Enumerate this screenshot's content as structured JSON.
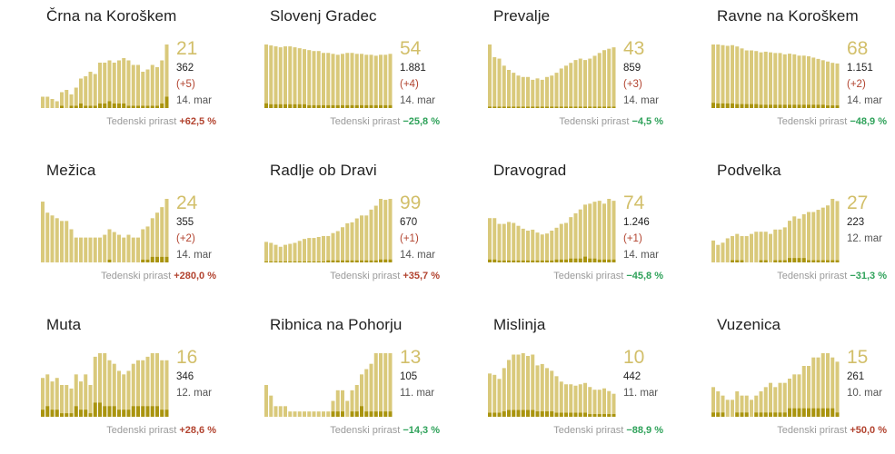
{
  "colors": {
    "bar": "#d9c97b",
    "bar_new": "#a9940f",
    "active_number": "#d2bf6a",
    "up": "#b2432f",
    "down": "#2fa25a"
  },
  "chart_data": [
    {
      "type": "bar",
      "title": "Črna na Koroškem",
      "active": "21",
      "total": "362",
      "delta": "(+5)",
      "date": "14. mar",
      "growth_label": "Tedenski prirast",
      "growth": "+62,5 %",
      "growth_dir": "up",
      "values": [
        5,
        5,
        4,
        3,
        7,
        8,
        6,
        9,
        13,
        14,
        16,
        15,
        20,
        20,
        21,
        20,
        21,
        22,
        21,
        19,
        19,
        16,
        17,
        19,
        18,
        21,
        28
      ],
      "new_values": [
        0,
        0,
        0,
        0,
        1,
        0,
        1,
        1,
        2,
        1,
        1,
        1,
        2,
        2,
        3,
        2,
        2,
        2,
        1,
        1,
        1,
        1,
        1,
        1,
        1,
        2,
        5
      ]
    },
    {
      "type": "bar",
      "title": "Slovenj Gradec",
      "active": "54",
      "total": "1.881",
      "delta": "(+4)",
      "date": "14. mar",
      "growth_label": "Tedenski prirast",
      "growth": "−25,8 %",
      "growth_dir": "down",
      "values": [
        68,
        67,
        66,
        65,
        66,
        66,
        65,
        64,
        63,
        62,
        61,
        61,
        59,
        59,
        58,
        57,
        58,
        59,
        59,
        58,
        58,
        57,
        57,
        56,
        57,
        57,
        58
      ],
      "new_values": [
        5,
        4,
        4,
        4,
        4,
        4,
        4,
        4,
        4,
        3,
        3,
        3,
        3,
        3,
        3,
        3,
        3,
        3,
        3,
        3,
        3,
        3,
        3,
        3,
        3,
        3,
        3
      ]
    },
    {
      "type": "bar",
      "title": "Prevalje",
      "active": "43",
      "total": "859",
      "delta": "(+3)",
      "date": "14. mar",
      "growth_label": "Tedenski prirast",
      "growth": "−4,5 %",
      "growth_dir": "down",
      "values": [
        45,
        36,
        35,
        30,
        27,
        25,
        23,
        22,
        22,
        20,
        21,
        20,
        22,
        23,
        25,
        28,
        30,
        32,
        34,
        35,
        34,
        35,
        37,
        39,
        41,
        42,
        43
      ],
      "new_values": [
        1,
        1,
        1,
        1,
        1,
        1,
        1,
        1,
        1,
        1,
        1,
        1,
        1,
        1,
        1,
        1,
        1,
        1,
        1,
        1,
        1,
        1,
        1,
        1,
        1,
        1,
        1
      ]
    },
    {
      "type": "bar",
      "title": "Ravne na Koroškem",
      "active": "68",
      "total": "1.151",
      "delta": "(+2)",
      "date": "14. mar",
      "growth_label": "Tedenski prirast",
      "growth": "−48,9 %",
      "growth_dir": "down",
      "values": [
        97,
        97,
        96,
        95,
        96,
        94,
        91,
        88,
        88,
        87,
        85,
        86,
        85,
        84,
        84,
        82,
        83,
        82,
        80,
        80,
        79,
        77,
        75,
        73,
        71,
        69,
        68
      ],
      "new_values": [
        8,
        7,
        7,
        7,
        7,
        6,
        6,
        6,
        6,
        6,
        5,
        5,
        5,
        5,
        5,
        5,
        5,
        5,
        5,
        5,
        5,
        5,
        5,
        5,
        4,
        4,
        4
      ]
    },
    {
      "type": "bar",
      "title": "Mežica",
      "active": "24",
      "total": "355",
      "delta": "(+2)",
      "date": "14. mar",
      "growth_label": "Tedenski prirast",
      "growth": "+280,0 %",
      "growth_dir": "up",
      "values": [
        22,
        18,
        17,
        16,
        15,
        15,
        12,
        9,
        9,
        9,
        9,
        9,
        9,
        10,
        12,
        11,
        10,
        9,
        10,
        9,
        9,
        12,
        13,
        16,
        18,
        20,
        23
      ],
      "new_values": [
        0,
        0,
        0,
        0,
        0,
        0,
        0,
        0,
        0,
        0,
        0,
        0,
        0,
        0,
        1,
        0,
        0,
        0,
        0,
        0,
        0,
        1,
        1,
        2,
        2,
        2,
        2
      ]
    },
    {
      "type": "bar",
      "title": "Radlje ob Dravi",
      "active": "99",
      "total": "670",
      "delta": "(+1)",
      "date": "14. mar",
      "growth_label": "Tedenski prirast",
      "growth": "+35,7 %",
      "growth_dir": "up",
      "values": [
        21,
        20,
        18,
        16,
        18,
        19,
        20,
        22,
        24,
        25,
        25,
        26,
        27,
        27,
        30,
        32,
        36,
        40,
        41,
        45,
        48,
        48,
        54,
        58,
        65,
        64,
        65
      ],
      "new_values": [
        1,
        1,
        1,
        1,
        1,
        1,
        1,
        1,
        1,
        1,
        1,
        1,
        1,
        2,
        2,
        2,
        2,
        2,
        2,
        2,
        2,
        2,
        2,
        2,
        3,
        3,
        3
      ]
    },
    {
      "type": "bar",
      "title": "Dravograd",
      "active": "74",
      "total": "1.246",
      "delta": "(+1)",
      "date": "14. mar",
      "growth_label": "Tedenski prirast",
      "growth": "−45,8 %",
      "growth_dir": "down",
      "values": [
        46,
        46,
        40,
        40,
        42,
        41,
        38,
        35,
        33,
        34,
        31,
        29,
        30,
        33,
        36,
        40,
        41,
        47,
        51,
        55,
        60,
        61,
        63,
        64,
        61,
        66,
        64
      ],
      "new_values": [
        3,
        3,
        2,
        2,
        2,
        2,
        2,
        2,
        2,
        2,
        2,
        2,
        2,
        2,
        3,
        3,
        3,
        4,
        4,
        4,
        6,
        4,
        4,
        3,
        3,
        3,
        3
      ]
    },
    {
      "type": "bar",
      "title": "Podvelka",
      "active": "27",
      "total": "223",
      "date": "12. mar",
      "growth_label": "Tedenski prirast",
      "growth": "−31,3 %",
      "growth_dir": "down",
      "values": [
        10,
        8,
        9,
        11,
        12,
        13,
        12,
        12,
        13,
        14,
        14,
        14,
        13,
        15,
        15,
        16,
        19,
        21,
        20,
        22,
        23,
        23,
        24,
        25,
        26,
        29,
        28
      ],
      "new_values": [
        0,
        0,
        0,
        0,
        1,
        1,
        1,
        0,
        0,
        0,
        1,
        1,
        0,
        1,
        1,
        1,
        2,
        2,
        2,
        2,
        1,
        1,
        1,
        1,
        1,
        1,
        1
      ]
    },
    {
      "type": "bar",
      "title": "Muta",
      "active": "16",
      "total": "346",
      "date": "12. mar",
      "growth_label": "Tedenski prirast",
      "growth": "+28,6 %",
      "growth_dir": "up",
      "values": [
        11,
        12,
        10,
        11,
        9,
        9,
        8,
        12,
        10,
        12,
        9,
        17,
        18,
        18,
        16,
        15,
        13,
        12,
        13,
        15,
        16,
        16,
        17,
        18,
        18,
        16,
        16
      ],
      "new_values": [
        2,
        3,
        2,
        2,
        1,
        1,
        1,
        3,
        2,
        2,
        1,
        4,
        4,
        3,
        3,
        3,
        2,
        2,
        2,
        3,
        3,
        3,
        3,
        3,
        3,
        2,
        2
      ]
    },
    {
      "type": "bar",
      "title": "Ribnica na Pohorju",
      "active": "13",
      "total": "105",
      "date": "11. mar",
      "growth_label": "Tedenski prirast",
      "growth": "−14,3 %",
      "growth_dir": "down",
      "values": [
        6,
        4,
        2,
        2,
        2,
        1,
        1,
        1,
        1,
        1,
        1,
        1,
        1,
        1,
        3,
        5,
        5,
        3,
        5,
        6,
        8,
        9,
        10,
        12,
        12,
        12,
        12
      ],
      "new_values": [
        0,
        0,
        0,
        0,
        0,
        0,
        0,
        0,
        0,
        0,
        0,
        0,
        0,
        0,
        1,
        1,
        1,
        0,
        1,
        1,
        2,
        1,
        1,
        1,
        1,
        1,
        1
      ]
    },
    {
      "type": "bar",
      "title": "Mislinja",
      "active": "10",
      "total": "442",
      "date": "11. mar",
      "growth_label": "Tedenski prirast",
      "growth": "−88,9 %",
      "growth_dir": "down",
      "values": [
        32,
        31,
        28,
        36,
        42,
        46,
        46,
        47,
        45,
        46,
        38,
        39,
        36,
        34,
        30,
        26,
        24,
        24,
        23,
        24,
        25,
        22,
        20,
        20,
        21,
        19,
        17
      ],
      "new_values": [
        3,
        3,
        3,
        4,
        5,
        5,
        5,
        5,
        5,
        5,
        4,
        4,
        4,
        4,
        3,
        3,
        3,
        3,
        3,
        3,
        3,
        2,
        2,
        2,
        2,
        2,
        2
      ]
    },
    {
      "type": "bar",
      "title": "Vuzenica",
      "active": "15",
      "total": "261",
      "date": "10. mar",
      "growth_label": "Tedenski prirast",
      "growth": "+50,0 %",
      "growth_dir": "up",
      "values": [
        7,
        6,
        5,
        4,
        4,
        6,
        5,
        5,
        4,
        5,
        6,
        7,
        8,
        7,
        8,
        8,
        9,
        10,
        10,
        12,
        12,
        14,
        14,
        15,
        15,
        14,
        13
      ],
      "new_values": [
        1,
        1,
        1,
        0,
        0,
        1,
        1,
        1,
        0,
        1,
        1,
        1,
        1,
        1,
        1,
        1,
        2,
        2,
        2,
        2,
        2,
        2,
        2,
        2,
        2,
        2,
        1
      ]
    }
  ]
}
